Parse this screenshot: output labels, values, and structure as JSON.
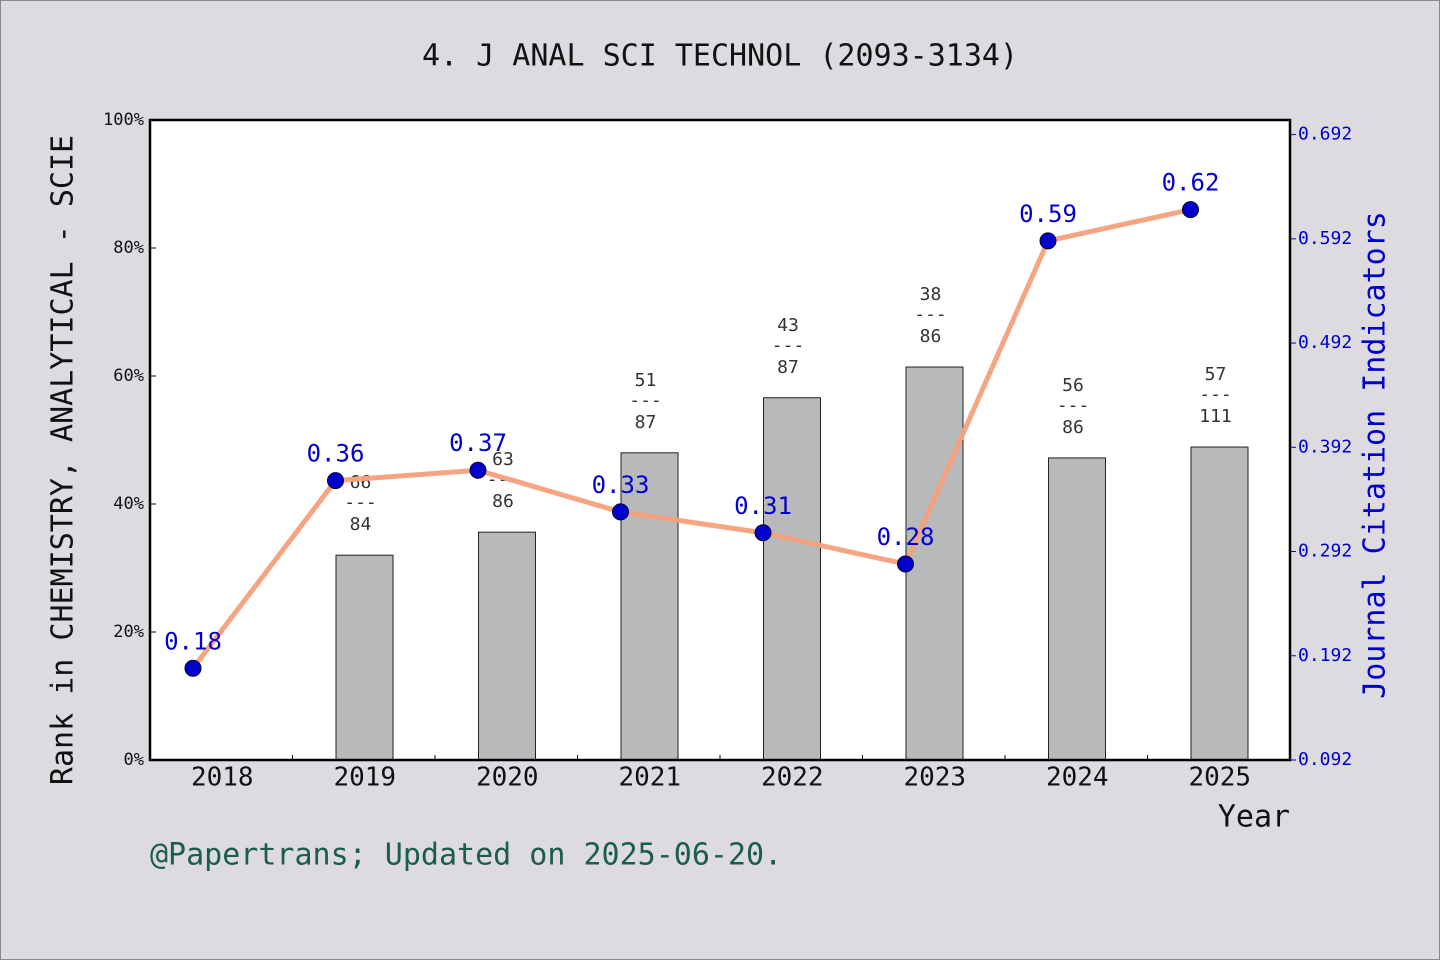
{
  "chart_data": {
    "type": "combo",
    "title": "4. J ANAL SCI TECHNOL (2093-3134)",
    "x_label": "Year",
    "y_label": "Rank in CHEMISTRY, ANALYTICAL - SCIE",
    "y2_label": "Journal Citation Indicators",
    "categories": [
      "2018",
      "2019",
      "2020",
      "2021",
      "2022",
      "2023",
      "2024",
      "2025"
    ],
    "ylim": [
      0,
      100
    ],
    "yticks": [
      {
        "value": 0,
        "label": "0%"
      },
      {
        "value": 20,
        "label": "20%"
      },
      {
        "value": 40,
        "label": "40%"
      },
      {
        "value": 60,
        "label": "60%"
      },
      {
        "value": 80,
        "label": "80%"
      },
      {
        "value": 100,
        "label": "100%"
      }
    ],
    "y2lim": [
      0.092,
      0.706
    ],
    "y2ticks": [
      0.092,
      0.192,
      0.292,
      0.392,
      0.492,
      0.592,
      0.692
    ],
    "label_separator": "---",
    "series": [
      {
        "type": "bar",
        "color": "#b8b9ba",
        "values": [
          null,
          32,
          35.6,
          48,
          56.6,
          61.4,
          47.2,
          48.9
        ],
        "ranks": [
          null,
          66,
          63,
          51,
          43,
          38,
          56,
          57
        ],
        "totals": [
          null,
          84,
          86,
          87,
          87,
          86,
          86,
          111
        ]
      },
      {
        "type": "line",
        "axis": "y2",
        "color": "#f5a07c",
        "marker_color": "#0000cc",
        "label_color": "#0000cc",
        "values": [
          0.18,
          0.36,
          0.37,
          0.33,
          0.31,
          0.28,
          0.59,
          0.62
        ]
      }
    ]
  },
  "footer": "@Papertrans; Updated on 2025-06-20."
}
